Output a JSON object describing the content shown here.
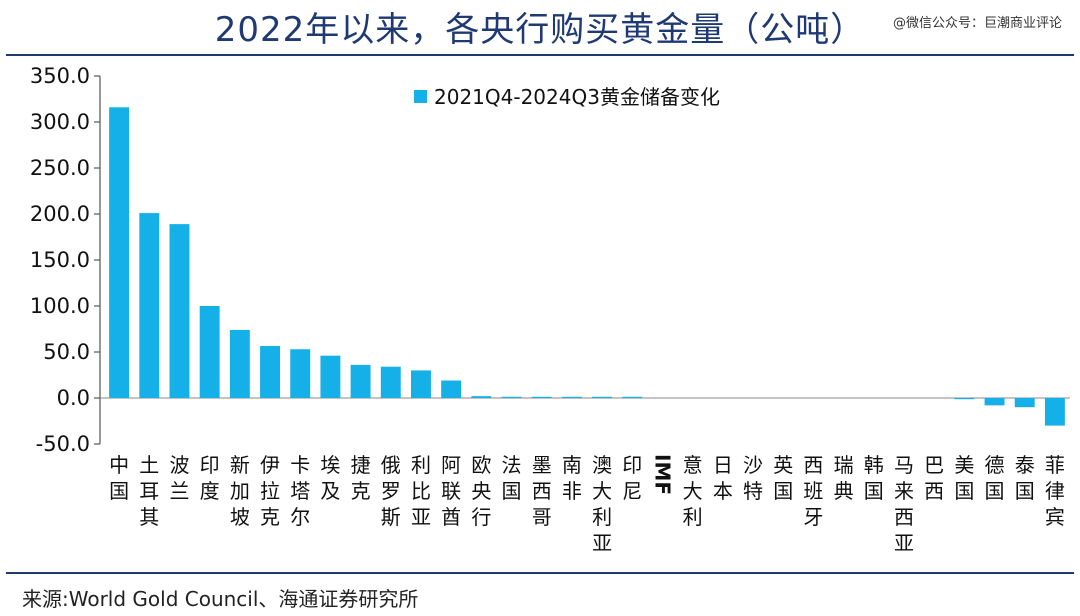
{
  "header": {
    "title": "2022年以来，各央行购买黄金量（公吨）",
    "watermark": "@微信公众号：巨潮商业评论"
  },
  "footer": {
    "source": "来源:World Gold Council、海通证券研究所"
  },
  "chart_data": {
    "type": "bar",
    "categories": [
      "中国",
      "土耳其",
      "波兰",
      "印度",
      "新加坡",
      "伊拉克",
      "卡塔尔",
      "埃及",
      "捷克",
      "俄罗斯",
      "利比亚",
      "阿联酋",
      "欧央行",
      "法国",
      "墨西哥",
      "南非",
      "澳大利亚",
      "印尼",
      "IMF",
      "意大利",
      "日本",
      "沙特",
      "英国",
      "西班牙",
      "瑞典",
      "韩国",
      "马来西亚",
      "巴西",
      "美国",
      "德国",
      "泰国",
      "菲律宾"
    ],
    "series": [
      {
        "name": "2021Q4-2024Q3黄金储备变化",
        "values": [
          316.0,
          201.0,
          189.0,
          100.0,
          74.0,
          56.5,
          53.0,
          46.0,
          36.0,
          34.0,
          30.0,
          19.0,
          2.0,
          1.0,
          0.8,
          0.5,
          0.5,
          0.5,
          0.0,
          0.0,
          0.0,
          0.0,
          0.0,
          0.0,
          0.0,
          0.0,
          0.0,
          0.0,
          -1.0,
          -8.0,
          -10.0,
          -30.0
        ],
        "color": "#16b0e8"
      }
    ],
    "ylim": [
      -50,
      350
    ],
    "yticks": [
      -50.0,
      0.0,
      50.0,
      100.0,
      150.0,
      200.0,
      250.0,
      300.0,
      350.0
    ],
    "ytick_labels": [
      "-50.0",
      "0.0",
      "50.0",
      "100.0",
      "150.0",
      "200.0",
      "250.0",
      "300.0",
      "350.0"
    ],
    "legend_position": "top-center",
    "grid": false
  }
}
